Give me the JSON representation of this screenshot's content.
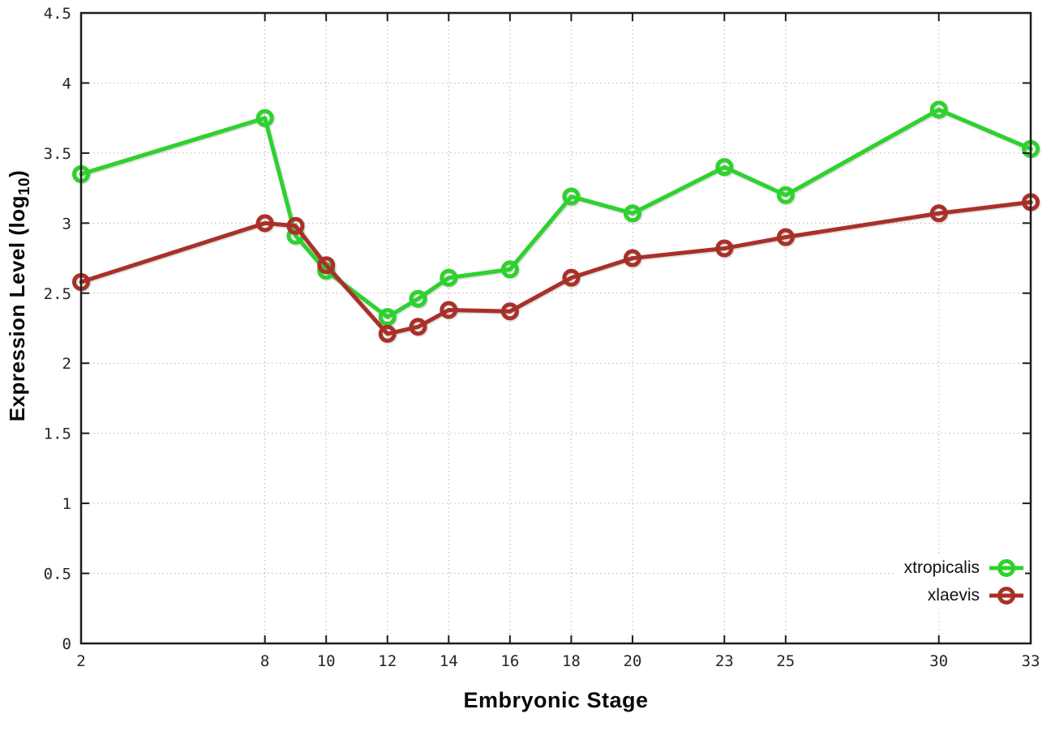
{
  "chart_data": {
    "type": "line",
    "title": "",
    "xlabel": "Embryonic Stage",
    "ylabel": "Expression Level (log10)",
    "ylabel_parts": {
      "main": "Expression Level (log",
      "sub": "10",
      "close": ")"
    },
    "x": [
      2,
      8,
      9,
      10,
      12,
      13,
      14,
      16,
      18,
      20,
      23,
      25,
      30,
      33
    ],
    "x_tick_values": [
      2,
      8,
      10,
      12,
      14,
      16,
      18,
      20,
      23,
      25,
      30,
      33
    ],
    "x_tick_labels": [
      "2",
      "8",
      "10",
      "12",
      "14",
      "16",
      "18",
      "20",
      "23",
      "25",
      "30",
      "33"
    ],
    "y_tick_values": [
      0,
      0.5,
      1,
      1.5,
      2,
      2.5,
      3,
      3.5,
      4,
      4.5
    ],
    "y_tick_labels": [
      "0",
      "0.5",
      "1",
      "1.5",
      "2",
      "2.5",
      "3",
      "3.5",
      "4",
      "4.5"
    ],
    "xlim": [
      2,
      33
    ],
    "ylim": [
      0,
      4.5
    ],
    "grid": true,
    "legend_position": "bottom-right",
    "series": [
      {
        "name": "xtropicalis",
        "color": "#2dd22d",
        "values": [
          3.35,
          3.75,
          2.91,
          2.66,
          2.33,
          2.46,
          2.61,
          2.67,
          3.19,
          3.07,
          3.4,
          3.2,
          3.81,
          3.53
        ]
      },
      {
        "name": "xlaevis",
        "color": "#a93029",
        "values": [
          2.58,
          3.0,
          2.98,
          2.7,
          2.21,
          2.26,
          2.38,
          2.37,
          2.61,
          2.75,
          2.82,
          2.9,
          3.07,
          3.15
        ]
      }
    ],
    "colors": {
      "border": "#1c1c1c",
      "grid": "#b4b4b4",
      "tick_text": "#262626"
    }
  }
}
